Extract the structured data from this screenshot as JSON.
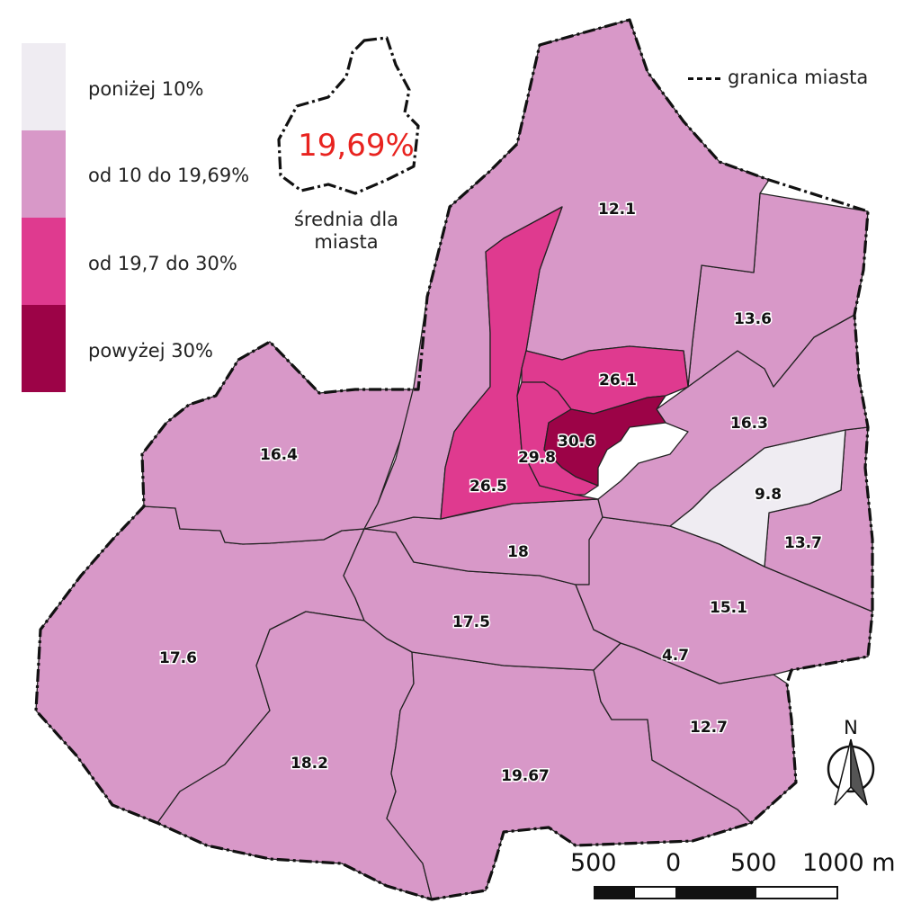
{
  "legend": {
    "items": [
      {
        "label": "poniżej 10%",
        "color": "#efecf2"
      },
      {
        "label": "od 10 do 19,69%",
        "color": "#d898c8"
      },
      {
        "label": "od 19,7 do 30%",
        "color": "#df3a8f"
      },
      {
        "label": "powyżej 30%",
        "color": "#9c0347"
      }
    ],
    "border_label": "granica miasta"
  },
  "average": {
    "value": "19,69%",
    "caption_line1": "średnia dla",
    "caption_line2": "miasta"
  },
  "districts": [
    {
      "id": "north",
      "value": "12.1",
      "class": 1
    },
    {
      "id": "northeast",
      "value": "13.6",
      "class": 1
    },
    {
      "id": "center-east",
      "value": "26.1",
      "class": 2
    },
    {
      "id": "east-middle",
      "value": "16.3",
      "class": 1
    },
    {
      "id": "old-town",
      "value": "30.6",
      "class": 3
    },
    {
      "id": "center-west",
      "value": "29.8",
      "class": 2
    },
    {
      "id": "north-center-strip",
      "value": "26.5",
      "class": 2
    },
    {
      "id": "west-upper",
      "value": "16.4",
      "class": 1
    },
    {
      "id": "east-light",
      "value": "9.8",
      "class": 0
    },
    {
      "id": "east-far",
      "value": "13.7",
      "class": 1
    },
    {
      "id": "center-south",
      "value": "18",
      "class": 1
    },
    {
      "id": "southeast-mid",
      "value": "15.1",
      "class": 1
    },
    {
      "id": "south-center",
      "value": "17.5",
      "class": 1
    },
    {
      "id": "west",
      "value": "17.6",
      "class": 1
    },
    {
      "id": "south-small",
      "value": "4.7",
      "class": 0
    },
    {
      "id": "southeast",
      "value": "12.7",
      "class": 1
    },
    {
      "id": "southwest",
      "value": "18.2",
      "class": 1
    },
    {
      "id": "south",
      "value": "19.67",
      "class": 1
    }
  ],
  "north_arrow": {
    "label": "N"
  },
  "scale_bar": {
    "labels": [
      "500",
      "0",
      "500",
      "1000 m"
    ]
  }
}
